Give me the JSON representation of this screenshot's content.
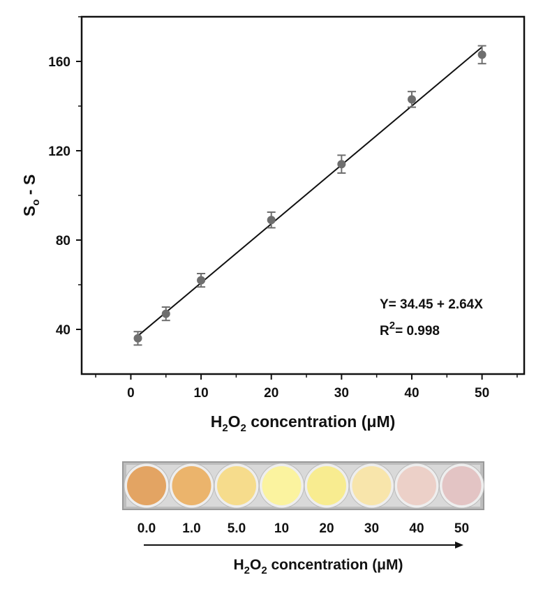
{
  "chart_data": {
    "type": "scatter",
    "x": [
      1,
      5,
      10,
      20,
      30,
      40,
      50
    ],
    "y": [
      36,
      47,
      62,
      89,
      114,
      143,
      163
    ],
    "yerr": [
      3,
      3,
      3,
      3.5,
      4,
      3.5,
      4
    ],
    "fit": {
      "intercept": 34.45,
      "slope": 2.64
    },
    "xlim": [
      -7,
      56
    ],
    "ylim": [
      20,
      180
    ],
    "xticks": [
      "0",
      "10",
      "20",
      "30",
      "40",
      "50"
    ],
    "yticks": [
      "40",
      "80",
      "120",
      "160"
    ],
    "xlabel": {
      "main": "H",
      "sub1": "2",
      "mid": "O",
      "sub2": "2",
      "rest": " concentration (μM)"
    },
    "ylabel": {
      "main": "S",
      "sub": "o",
      "rest": " - S"
    },
    "equation": "Y= 34.45 + 2.64X",
    "r2": {
      "prefix": "R",
      "sup": "2",
      "rest": "= 0.998"
    },
    "grid": false,
    "marker_color": "#6e6e6e",
    "line_color": "#111111"
  },
  "well_strip": {
    "labels": [
      "0.0",
      "1.0",
      "5.0",
      "10",
      "20",
      "30",
      "40",
      "50"
    ],
    "colors": [
      "#e3a463",
      "#ebb46c",
      "#f6dc8c",
      "#fbf39f",
      "#f8ec90",
      "#f8e5ab",
      "#ecd0c8",
      "#e3c4c4"
    ],
    "arrow_label": {
      "main": "H",
      "sub1": "2",
      "mid": "O",
      "sub2": "2",
      "rest": " concentration (μM)"
    }
  }
}
